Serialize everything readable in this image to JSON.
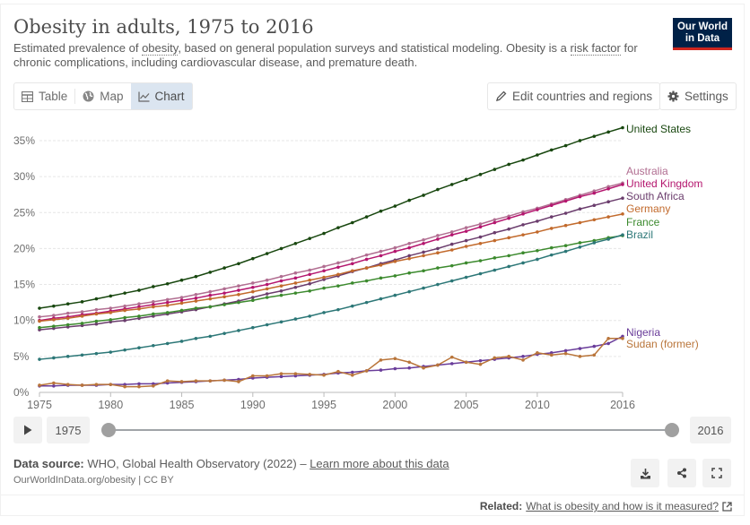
{
  "header": {
    "title": "Obesity in adults, 1975 to 2016",
    "subtitle_parts": {
      "p1": "Estimated prevalence of ",
      "link1": "obesity",
      "p2": ", based on general population surveys and statistical modeling. Obesity is a ",
      "link2": "risk factor",
      "p3": " for chronic complications, including cardiovascular disease, and premature death."
    },
    "logo_line1": "Our World",
    "logo_line2": "in Data"
  },
  "tabs": [
    {
      "label": "Table",
      "icon": "table-icon",
      "active": false
    },
    {
      "label": "Map",
      "icon": "globe-icon",
      "active": false
    },
    {
      "label": "Chart",
      "icon": "line-chart-icon",
      "active": true
    }
  ],
  "toolbar": {
    "edit_label": "Edit countries and regions",
    "settings_label": "Settings"
  },
  "timeline": {
    "start_year": "1975",
    "end_year": "2016",
    "range_start_fraction": 0,
    "range_end_fraction": 1
  },
  "footer": {
    "source_label": "Data source:",
    "source_text": " WHO, Global Health Observatory (2022) – ",
    "source_link": "Learn more about this data",
    "url_text": "OurWorldInData.org/obesity | CC BY",
    "related_label": "Related:",
    "related_link": "What is obesity and how is it measured?"
  },
  "chart_data": {
    "type": "line",
    "title": "Obesity in adults, 1975 to 2016",
    "xlabel": "",
    "ylabel": "",
    "x": [
      1975,
      1976,
      1977,
      1978,
      1979,
      1980,
      1981,
      1982,
      1983,
      1984,
      1985,
      1986,
      1987,
      1988,
      1989,
      1990,
      1991,
      1992,
      1993,
      1994,
      1995,
      1996,
      1997,
      1998,
      1999,
      2000,
      2001,
      2002,
      2003,
      2004,
      2005,
      2006,
      2007,
      2008,
      2009,
      2010,
      2011,
      2012,
      2013,
      2014,
      2015,
      2016
    ],
    "xticks": [
      "1975",
      "1980",
      "1985",
      "1990",
      "1995",
      "2000",
      "2005",
      "2010",
      "2016"
    ],
    "xtick_values": [
      1975,
      1980,
      1985,
      1990,
      1995,
      2000,
      2005,
      2010,
      2016
    ],
    "yticks": [
      "0%",
      "5%",
      "10%",
      "15%",
      "20%",
      "25%",
      "30%",
      "35%"
    ],
    "ytick_values": [
      0,
      5,
      10,
      15,
      20,
      25,
      30,
      35
    ],
    "ylim": [
      0,
      37.5
    ],
    "xlim": [
      1975,
      2016
    ],
    "grid": "horizontal",
    "legend": "right-inline-labels",
    "series": [
      {
        "name": "United States",
        "color": "#18470f",
        "values": [
          11.7,
          12.0,
          12.3,
          12.6,
          13.0,
          13.4,
          13.8,
          14.2,
          14.7,
          15.1,
          15.6,
          16.1,
          16.7,
          17.3,
          17.9,
          18.6,
          19.3,
          20.0,
          20.7,
          21.4,
          22.1,
          22.9,
          23.6,
          24.4,
          25.2,
          25.9,
          26.7,
          27.4,
          28.2,
          28.9,
          29.6,
          30.3,
          31.0,
          31.7,
          32.3,
          33.0,
          33.7,
          34.3,
          35.0,
          35.6,
          36.2,
          36.8
        ]
      },
      {
        "name": "Australia",
        "color": "#b16e91",
        "values": [
          10.5,
          10.7,
          11.0,
          11.2,
          11.5,
          11.7,
          12.0,
          12.3,
          12.6,
          12.9,
          13.2,
          13.6,
          14.0,
          14.4,
          14.8,
          15.2,
          15.6,
          16.1,
          16.6,
          17.0,
          17.5,
          18.0,
          18.5,
          19.1,
          19.6,
          20.1,
          20.7,
          21.2,
          21.8,
          22.3,
          22.9,
          23.4,
          24.0,
          24.5,
          25.1,
          25.6,
          26.2,
          26.8,
          27.4,
          28.0,
          28.6,
          29.1
        ]
      },
      {
        "name": "United Kingdom",
        "color": "#b4166e",
        "values": [
          10.0,
          10.3,
          10.5,
          10.8,
          11.0,
          11.3,
          11.6,
          11.9,
          12.2,
          12.5,
          12.8,
          13.1,
          13.5,
          13.8,
          14.2,
          14.6,
          15.0,
          15.5,
          15.9,
          16.4,
          16.9,
          17.4,
          17.9,
          18.5,
          19.0,
          19.6,
          20.1,
          20.7,
          21.3,
          21.9,
          22.4,
          23.0,
          23.6,
          24.2,
          24.8,
          25.4,
          26.0,
          26.6,
          27.2,
          27.7,
          28.3,
          28.9
        ]
      },
      {
        "name": "South Africa",
        "color": "#6b3d6d",
        "values": [
          8.7,
          8.9,
          9.1,
          9.3,
          9.5,
          9.8,
          10.0,
          10.3,
          10.6,
          10.9,
          11.2,
          11.5,
          11.9,
          12.3,
          12.7,
          13.2,
          13.7,
          14.1,
          14.6,
          15.1,
          15.7,
          16.2,
          16.8,
          17.3,
          17.9,
          18.4,
          19.0,
          19.5,
          20.0,
          20.6,
          21.1,
          21.6,
          22.2,
          22.7,
          23.3,
          23.8,
          24.4,
          24.9,
          25.5,
          26.0,
          26.5,
          27.0
        ]
      },
      {
        "name": "Germany",
        "color": "#c26a2c",
        "values": [
          9.9,
          10.1,
          10.3,
          10.6,
          10.9,
          11.1,
          11.4,
          11.6,
          11.9,
          12.1,
          12.4,
          12.7,
          13.0,
          13.3,
          13.6,
          14.0,
          14.4,
          14.8,
          15.2,
          15.6,
          16.0,
          16.4,
          16.9,
          17.3,
          17.7,
          18.2,
          18.6,
          19.0,
          19.4,
          19.8,
          20.3,
          20.7,
          21.1,
          21.5,
          21.9,
          22.3,
          22.8,
          23.2,
          23.6,
          24.0,
          24.4,
          24.8
        ]
      },
      {
        "name": "France",
        "color": "#3c8a2e",
        "values": [
          9.0,
          9.2,
          9.4,
          9.6,
          9.9,
          10.1,
          10.4,
          10.6,
          10.9,
          11.1,
          11.4,
          11.7,
          11.9,
          12.2,
          12.5,
          12.8,
          13.2,
          13.5,
          13.8,
          14.1,
          14.5,
          14.8,
          15.2,
          15.5,
          15.9,
          16.2,
          16.6,
          16.9,
          17.3,
          17.6,
          18.0,
          18.3,
          18.7,
          19.0,
          19.4,
          19.7,
          20.1,
          20.4,
          20.8,
          21.1,
          21.5,
          21.8
        ]
      },
      {
        "name": "Brazil",
        "color": "#2c7777",
        "values": [
          4.6,
          4.8,
          5.0,
          5.2,
          5.4,
          5.6,
          5.9,
          6.2,
          6.5,
          6.8,
          7.1,
          7.5,
          7.8,
          8.2,
          8.6,
          9.0,
          9.4,
          9.8,
          10.2,
          10.6,
          11.1,
          11.5,
          12.0,
          12.5,
          13.0,
          13.5,
          14.0,
          14.5,
          15.0,
          15.5,
          16.0,
          16.5,
          17.0,
          17.5,
          18.0,
          18.5,
          19.1,
          19.6,
          20.2,
          20.8,
          21.3,
          21.9
        ]
      },
      {
        "name": "Nigeria",
        "color": "#6a3d9a",
        "values": [
          0.9,
          0.9,
          1.0,
          1.0,
          1.0,
          1.1,
          1.1,
          1.2,
          1.2,
          1.3,
          1.4,
          1.5,
          1.6,
          1.7,
          1.8,
          2.0,
          2.1,
          2.2,
          2.3,
          2.4,
          2.5,
          2.7,
          2.8,
          3.0,
          3.1,
          3.3,
          3.4,
          3.6,
          3.8,
          4.0,
          4.2,
          4.4,
          4.6,
          4.8,
          5.0,
          5.3,
          5.5,
          5.8,
          6.1,
          6.4,
          6.8,
          7.8
        ]
      },
      {
        "name": "Sudan (former)",
        "color": "#b9753a",
        "values": [
          1.0,
          1.3,
          1.1,
          1.0,
          1.1,
          1.1,
          0.8,
          0.8,
          0.9,
          1.6,
          1.5,
          1.6,
          1.6,
          1.7,
          1.5,
          2.3,
          2.3,
          2.6,
          2.6,
          2.5,
          2.4,
          2.9,
          2.4,
          3.0,
          4.5,
          4.7,
          4.2,
          3.4,
          3.8,
          4.9,
          4.2,
          3.9,
          4.8,
          5.0,
          4.5,
          5.5,
          5.2,
          5.4,
          5.0,
          5.2,
          7.5,
          7.5
        ]
      }
    ]
  }
}
